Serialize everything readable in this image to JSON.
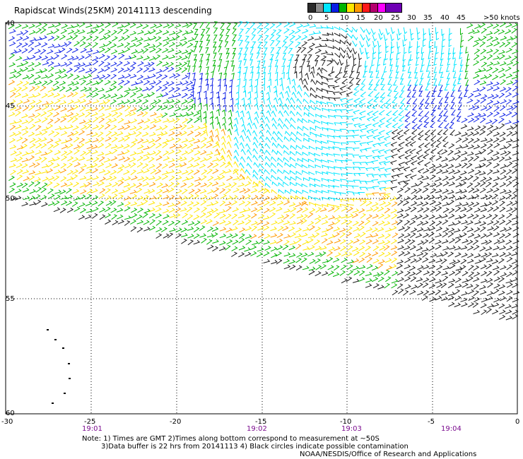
{
  "title": "Rapidscat Winds(25KM) 20141113 descending",
  "legend": {
    "unit": "knots",
    "labels": [
      "0",
      "5",
      "10",
      "15",
      "20",
      "25",
      "30",
      "35",
      "40",
      "45",
      ">50 knots"
    ],
    "colors": [
      "#2b2b2b",
      "#8c8c8c",
      "#00e6ff",
      "#0a1ee6",
      "#00b400",
      "#ffe600",
      "#ff9900",
      "#ff1a1a",
      "#b4006e",
      "#ff00ff",
      "#6e00b4"
    ]
  },
  "axes": {
    "x_ticks": [
      "-30",
      "-25",
      "-20",
      "-15",
      "-10",
      "-5",
      "0"
    ],
    "y_ticks": [
      "40",
      "45",
      "50",
      "55",
      "60"
    ],
    "times": [
      "19:01",
      "19:02",
      "19:03",
      "19:04"
    ]
  },
  "notes": {
    "line1": "Note: 1) Times are GMT 2)Times along bottom correspond to measurement at ~50S",
    "line2": "3)Data buffer is 22 hrs from 20141113 4) Black circles indicate possible contamination",
    "credit": "NOAA/NESDIS/Office of Research and Applications"
  }
}
